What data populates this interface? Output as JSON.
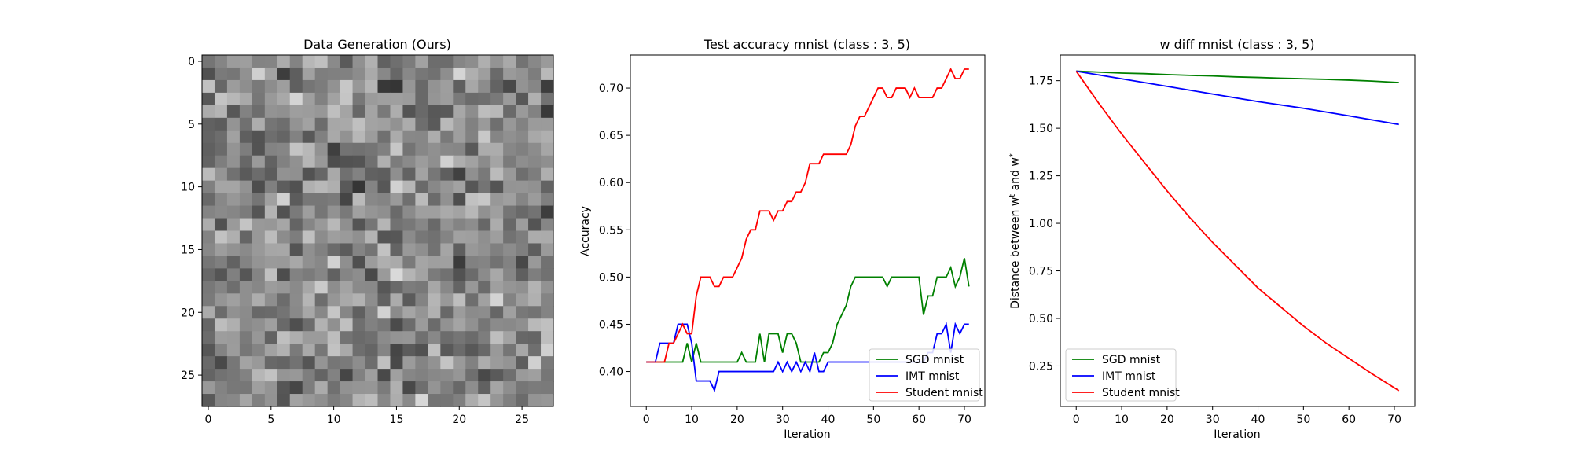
{
  "chart_data": [
    {
      "type": "heatmap",
      "title": "Data Generation (Ours)",
      "colormap": "gray",
      "rows": 28,
      "cols": 28,
      "xlim": [
        -0.5,
        27.5
      ],
      "ylim": [
        27.5,
        -0.5
      ],
      "x_ticks": [
        0,
        5,
        10,
        15,
        20,
        25
      ],
      "y_ticks": [
        0,
        5,
        10,
        15,
        20,
        25
      ],
      "seed": 7
    },
    {
      "type": "line",
      "title": "Test accuracy mnist (class : 3, 5)",
      "xlabel": "Iteration",
      "ylabel": "Accuracy",
      "xlim": [
        -3.5,
        74.5
      ],
      "ylim": [
        0.363,
        0.735
      ],
      "x_ticks": [
        0,
        10,
        20,
        30,
        40,
        50,
        60,
        70
      ],
      "y_ticks": [
        0.4,
        0.45,
        0.5,
        0.55,
        0.6,
        0.65,
        0.7
      ],
      "legend_position": "lower-right",
      "series": [
        {
          "name": "SGD mnist",
          "color": "#008000",
          "values": [
            0.41,
            0.41,
            0.41,
            0.41,
            0.41,
            0.41,
            0.41,
            0.41,
            0.41,
            0.43,
            0.41,
            0.43,
            0.41,
            0.41,
            0.41,
            0.41,
            0.41,
            0.41,
            0.41,
            0.41,
            0.41,
            0.42,
            0.41,
            0.41,
            0.41,
            0.44,
            0.41,
            0.44,
            0.44,
            0.44,
            0.42,
            0.44,
            0.44,
            0.43,
            0.41,
            0.41,
            0.41,
            0.41,
            0.41,
            0.42,
            0.42,
            0.43,
            0.45,
            0.46,
            0.47,
            0.49,
            0.5,
            0.5,
            0.5,
            0.5,
            0.5,
            0.5,
            0.5,
            0.49,
            0.5,
            0.5,
            0.5,
            0.5,
            0.5,
            0.5,
            0.5,
            0.46,
            0.48,
            0.48,
            0.5,
            0.5,
            0.5,
            0.51,
            0.49,
            0.5,
            0.52,
            0.49
          ]
        },
        {
          "name": "IMT mnist",
          "color": "#0000ff",
          "values": [
            0.41,
            0.41,
            0.41,
            0.43,
            0.43,
            0.43,
            0.43,
            0.45,
            0.45,
            0.45,
            0.43,
            0.39,
            0.39,
            0.39,
            0.39,
            0.38,
            0.4,
            0.4,
            0.4,
            0.4,
            0.4,
            0.4,
            0.4,
            0.4,
            0.4,
            0.4,
            0.4,
            0.4,
            0.4,
            0.41,
            0.4,
            0.41,
            0.4,
            0.41,
            0.4,
            0.41,
            0.4,
            0.42,
            0.4,
            0.4,
            0.41,
            0.41,
            0.41,
            0.41,
            0.41,
            0.41,
            0.41,
            0.41,
            0.41,
            0.41,
            0.41,
            0.41,
            0.41,
            0.41,
            0.41,
            0.41,
            0.41,
            0.41,
            0.41,
            0.41,
            0.41,
            0.41,
            0.42,
            0.42,
            0.44,
            0.44,
            0.45,
            0.42,
            0.45,
            0.44,
            0.45,
            0.45
          ]
        },
        {
          "name": "Student mnist",
          "color": "#ff0000",
          "values": [
            0.41,
            0.41,
            0.41,
            0.41,
            0.41,
            0.43,
            0.43,
            0.44,
            0.45,
            0.44,
            0.44,
            0.48,
            0.5,
            0.5,
            0.5,
            0.49,
            0.49,
            0.5,
            0.5,
            0.5,
            0.51,
            0.52,
            0.54,
            0.55,
            0.55,
            0.57,
            0.57,
            0.57,
            0.56,
            0.57,
            0.57,
            0.58,
            0.58,
            0.59,
            0.59,
            0.6,
            0.62,
            0.62,
            0.62,
            0.63,
            0.63,
            0.63,
            0.63,
            0.63,
            0.63,
            0.64,
            0.66,
            0.67,
            0.67,
            0.68,
            0.69,
            0.7,
            0.7,
            0.69,
            0.69,
            0.7,
            0.7,
            0.7,
            0.69,
            0.7,
            0.69,
            0.69,
            0.69,
            0.69,
            0.7,
            0.7,
            0.71,
            0.72,
            0.71,
            0.71,
            0.72,
            0.72
          ]
        }
      ]
    },
    {
      "type": "line",
      "title": "w diff mnist (class : 3, 5)",
      "xlabel": "Iteration",
      "ylabel": "Distance between w^t and w^*",
      "xlim": [
        -3.5,
        74.5
      ],
      "ylim": [
        0.037,
        1.885
      ],
      "x_ticks": [
        0,
        10,
        20,
        30,
        40,
        50,
        60,
        70
      ],
      "y_ticks": [
        0.25,
        0.5,
        0.75,
        1.0,
        1.25,
        1.5,
        1.75
      ],
      "legend_position": "lower-left",
      "series": [
        {
          "name": "SGD mnist",
          "color": "#008000",
          "x": [
            0,
            5,
            10,
            15,
            20,
            25,
            30,
            35,
            40,
            45,
            50,
            55,
            60,
            65,
            71
          ],
          "values": [
            1.8,
            1.795,
            1.79,
            1.787,
            1.782,
            1.778,
            1.775,
            1.77,
            1.767,
            1.763,
            1.76,
            1.757,
            1.753,
            1.748,
            1.74
          ]
        },
        {
          "name": "IMT mnist",
          "color": "#0000ff",
          "x": [
            0,
            10,
            20,
            30,
            40,
            50,
            60,
            71
          ],
          "values": [
            1.8,
            1.76,
            1.72,
            1.68,
            1.64,
            1.605,
            1.565,
            1.52
          ]
        },
        {
          "name": "Student mnist",
          "color": "#ff0000",
          "x": [
            0,
            5,
            10,
            15,
            20,
            25,
            30,
            35,
            40,
            45,
            50,
            55,
            60,
            65,
            71
          ],
          "values": [
            1.8,
            1.63,
            1.47,
            1.32,
            1.17,
            1.03,
            0.9,
            0.78,
            0.66,
            0.56,
            0.46,
            0.37,
            0.29,
            0.21,
            0.12
          ]
        }
      ]
    }
  ]
}
